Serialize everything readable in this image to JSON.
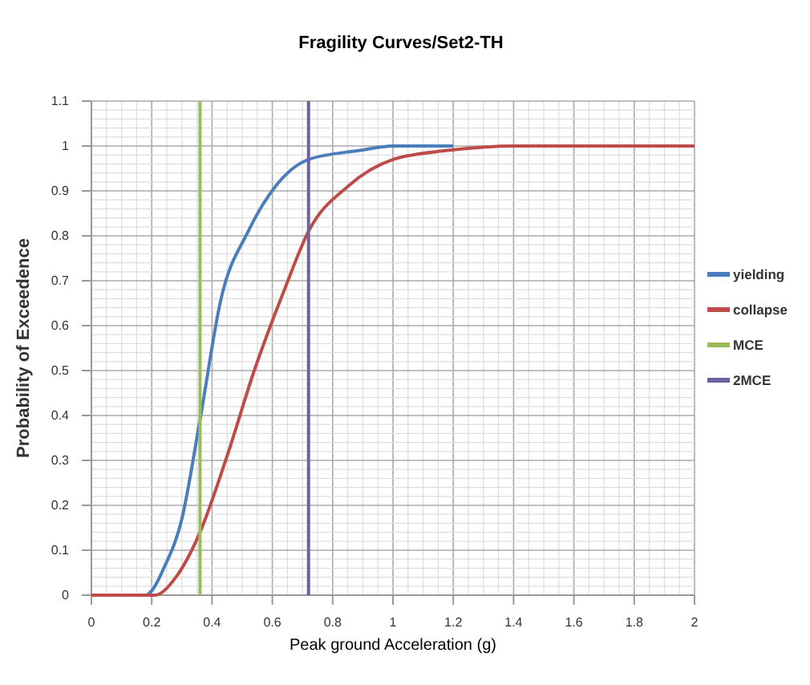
{
  "chart_data": {
    "type": "line",
    "title": "Fragility Curves/Set2-TH",
    "xlabel": "Peak ground Acceleration (g)",
    "ylabel": "Probability of Exceedence",
    "xlim": [
      0,
      2
    ],
    "xticks": [
      0,
      0.2,
      0.4,
      0.6,
      0.8,
      1,
      1.2,
      1.4,
      1.6,
      1.8,
      2
    ],
    "ylim": [
      0,
      1.1
    ],
    "yticks": [
      0,
      0.1,
      0.2,
      0.3,
      0.4,
      0.5,
      0.6,
      0.7,
      0.8,
      0.9,
      1,
      1.1
    ],
    "grid": true,
    "legend": "right",
    "marker": "none",
    "line_style": "solid",
    "series": [
      {
        "name": "yielding",
        "color": "#4a7ebb",
        "x": [
          0,
          0.18,
          0.2,
          0.24,
          0.3,
          0.36,
          0.43,
          0.52,
          0.61,
          0.72,
          0.89,
          1.0,
          1.2
        ],
        "values": [
          0,
          0,
          0.01,
          0.06,
          0.17,
          0.39,
          0.66,
          0.81,
          0.91,
          0.97,
          0.99,
          1,
          1
        ]
      },
      {
        "name": "collapse",
        "color": "#be4b48",
        "x": [
          0,
          0.21,
          0.28,
          0.36,
          0.45,
          0.54,
          0.64,
          0.72,
          0.85,
          1.0,
          1.18,
          1.41,
          1.6,
          2.0
        ],
        "values": [
          0,
          0,
          0.04,
          0.14,
          0.31,
          0.5,
          0.68,
          0.81,
          0.91,
          0.97,
          0.99,
          1,
          1,
          1
        ]
      },
      {
        "name": "MCE",
        "color": "#9bbb59",
        "x": [
          0.36,
          0.36
        ],
        "values": [
          0,
          1.1
        ]
      },
      {
        "name": "2MCE",
        "color": "#7060a0",
        "x": [
          0.72,
          0.72
        ],
        "values": [
          0,
          1.1
        ]
      }
    ]
  }
}
